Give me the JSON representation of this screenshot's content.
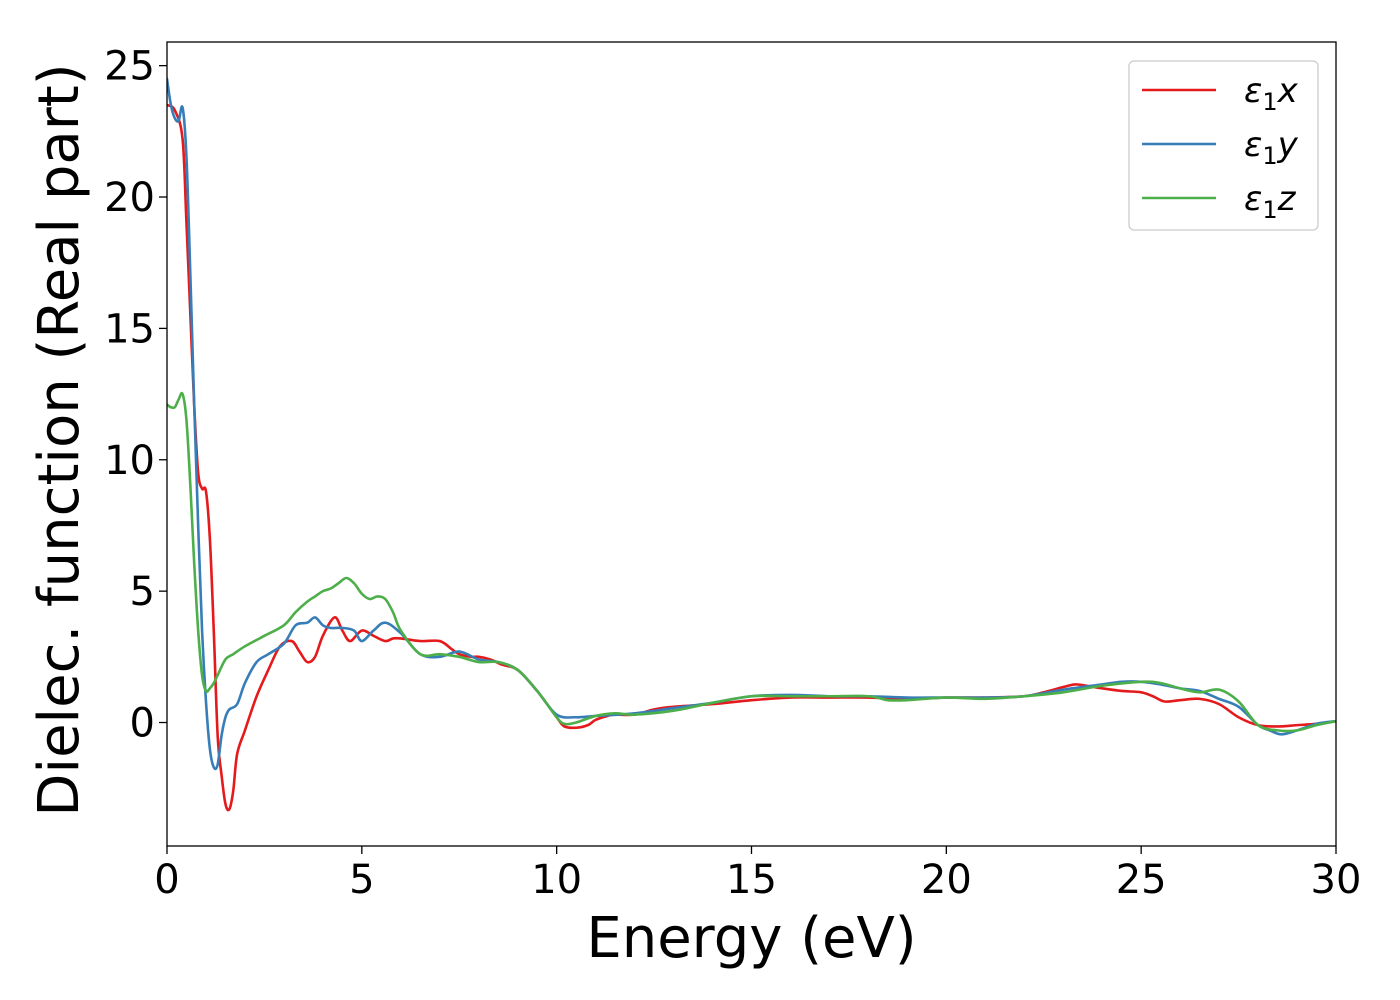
{
  "chart_data": {
    "type": "line",
    "title": "",
    "xlabel": "Energy (eV)",
    "ylabel": "Dielec. function (Real part)",
    "xlim": [
      0,
      30
    ],
    "ylim": [
      -4.7,
      25.9
    ],
    "xticks": [
      0,
      5,
      10,
      15,
      20,
      25,
      30
    ],
    "yticks": [
      0,
      5,
      10,
      15,
      20,
      25
    ],
    "grid": false,
    "legend_position": "top-right",
    "series": [
      {
        "name": "ε₁x",
        "label_main": "ε",
        "label_sub": "1",
        "label_var": "x",
        "color": "#e41a1c",
        "x": [
          0,
          0.2,
          0.4,
          0.5,
          0.6,
          0.7,
          0.8,
          0.9,
          1.0,
          1.1,
          1.2,
          1.3,
          1.4,
          1.5,
          1.6,
          1.7,
          1.8,
          2.0,
          2.3,
          2.6,
          2.9,
          3.2,
          3.4,
          3.6,
          3.8,
          4.0,
          4.3,
          4.5,
          4.7,
          5.0,
          5.3,
          5.6,
          5.8,
          6.0,
          6.5,
          7.0,
          7.3,
          7.5,
          7.8,
          8.0,
          8.3,
          8.6,
          9.0,
          9.5,
          10.0,
          10.2,
          10.5,
          10.8,
          11.0,
          11.3,
          11.5,
          12.0,
          12.5,
          13.0,
          14.0,
          15.0,
          16.0,
          17.0,
          18.0,
          19.0,
          20.0,
          21.0,
          22.0,
          22.5,
          23.0,
          23.3,
          23.6,
          24.0,
          24.5,
          25.0,
          25.3,
          25.6,
          26.0,
          26.5,
          27.0,
          27.5,
          28.0,
          28.5,
          29.0,
          29.5,
          30.0
        ],
        "y": [
          23.5,
          23.3,
          22.2,
          19.0,
          15.5,
          12.0,
          9.5,
          8.9,
          8.8,
          7.0,
          3.5,
          -0.5,
          -2.0,
          -3.1,
          -3.3,
          -2.6,
          -1.2,
          -0.3,
          1.0,
          2.0,
          2.9,
          3.1,
          2.7,
          2.3,
          2.5,
          3.3,
          4.0,
          3.5,
          3.1,
          3.5,
          3.3,
          3.1,
          3.2,
          3.2,
          3.1,
          3.1,
          2.8,
          2.6,
          2.5,
          2.5,
          2.4,
          2.2,
          2.0,
          1.2,
          0.2,
          -0.15,
          -0.2,
          -0.1,
          0.1,
          0.25,
          0.3,
          0.3,
          0.5,
          0.6,
          0.7,
          0.85,
          0.95,
          0.95,
          0.95,
          0.9,
          0.95,
          0.95,
          1.0,
          1.15,
          1.35,
          1.45,
          1.4,
          1.3,
          1.2,
          1.15,
          1.0,
          0.8,
          0.85,
          0.9,
          0.7,
          0.2,
          -0.1,
          -0.15,
          -0.1,
          -0.05,
          0.05
        ]
      },
      {
        "name": "ε₁y",
        "label_main": "ε",
        "label_sub": "1",
        "label_var": "y",
        "color": "#377eb8",
        "x": [
          0,
          0.1,
          0.2,
          0.3,
          0.4,
          0.5,
          0.6,
          0.7,
          0.8,
          0.9,
          1.0,
          1.1,
          1.2,
          1.3,
          1.4,
          1.5,
          1.6,
          1.8,
          2.0,
          2.3,
          2.6,
          3.0,
          3.3,
          3.6,
          3.8,
          4.0,
          4.2,
          4.5,
          4.8,
          5.0,
          5.3,
          5.6,
          6.0,
          6.5,
          7.0,
          7.5,
          8.0,
          8.5,
          9.0,
          9.5,
          10.0,
          10.5,
          11.0,
          12.0,
          13.0,
          14.0,
          15.0,
          16.0,
          17.0,
          18.0,
          19.0,
          20.0,
          21.0,
          22.0,
          23.0,
          24.0,
          24.5,
          25.0,
          25.5,
          26.0,
          26.5,
          27.0,
          27.5,
          28.0,
          28.3,
          28.6,
          29.0,
          29.5,
          30.0
        ],
        "y": [
          24.5,
          23.5,
          23.0,
          22.9,
          23.4,
          21.5,
          17.0,
          12.0,
          7.5,
          3.5,
          0.8,
          -1.0,
          -1.7,
          -1.6,
          -0.5,
          0.2,
          0.5,
          0.7,
          1.5,
          2.3,
          2.6,
          3.0,
          3.7,
          3.8,
          4.0,
          3.7,
          3.6,
          3.6,
          3.5,
          3.1,
          3.5,
          3.8,
          3.4,
          2.6,
          2.5,
          2.7,
          2.4,
          2.3,
          2.0,
          1.2,
          0.3,
          0.2,
          0.25,
          0.35,
          0.55,
          0.75,
          1.0,
          1.05,
          1.0,
          1.0,
          0.95,
          0.95,
          0.95,
          1.0,
          1.25,
          1.45,
          1.55,
          1.55,
          1.45,
          1.3,
          1.2,
          0.9,
          0.6,
          -0.1,
          -0.3,
          -0.45,
          -0.3,
          -0.05,
          0.05
        ]
      },
      {
        "name": "ε₁z",
        "label_main": "ε",
        "label_sub": "1",
        "label_var": "z",
        "color": "#4daf4a",
        "x": [
          0,
          0.1,
          0.2,
          0.3,
          0.4,
          0.5,
          0.6,
          0.7,
          0.8,
          0.9,
          1.0,
          1.1,
          1.2,
          1.3,
          1.5,
          1.7,
          2.0,
          2.5,
          3.0,
          3.3,
          3.6,
          3.8,
          4.0,
          4.2,
          4.4,
          4.6,
          4.8,
          5.0,
          5.2,
          5.4,
          5.6,
          5.8,
          6.0,
          6.5,
          7.0,
          7.5,
          8.0,
          8.5,
          9.0,
          9.5,
          10.0,
          10.2,
          10.5,
          11.0,
          11.5,
          12.0,
          13.0,
          14.0,
          15.0,
          16.0,
          17.0,
          18.0,
          18.5,
          19.0,
          20.0,
          21.0,
          22.0,
          23.0,
          24.0,
          25.0,
          25.5,
          26.0,
          26.5,
          27.0,
          27.5,
          28.0,
          28.5,
          29.0,
          29.5,
          30.0
        ],
        "y": [
          12.1,
          12.0,
          12.0,
          12.3,
          12.5,
          11.5,
          9.0,
          6.0,
          3.5,
          1.8,
          1.2,
          1.3,
          1.5,
          1.8,
          2.4,
          2.6,
          2.9,
          3.3,
          3.7,
          4.2,
          4.6,
          4.8,
          5.0,
          5.1,
          5.3,
          5.5,
          5.3,
          4.9,
          4.7,
          4.8,
          4.7,
          4.2,
          3.5,
          2.6,
          2.6,
          2.5,
          2.3,
          2.3,
          2.0,
          1.2,
          0.2,
          -0.05,
          0.0,
          0.25,
          0.35,
          0.3,
          0.45,
          0.75,
          1.0,
          1.0,
          1.0,
          1.0,
          0.85,
          0.85,
          0.95,
          0.9,
          1.0,
          1.15,
          1.4,
          1.55,
          1.5,
          1.3,
          1.15,
          1.25,
          0.8,
          -0.1,
          -0.3,
          -0.3,
          -0.1,
          0.05
        ]
      }
    ]
  }
}
